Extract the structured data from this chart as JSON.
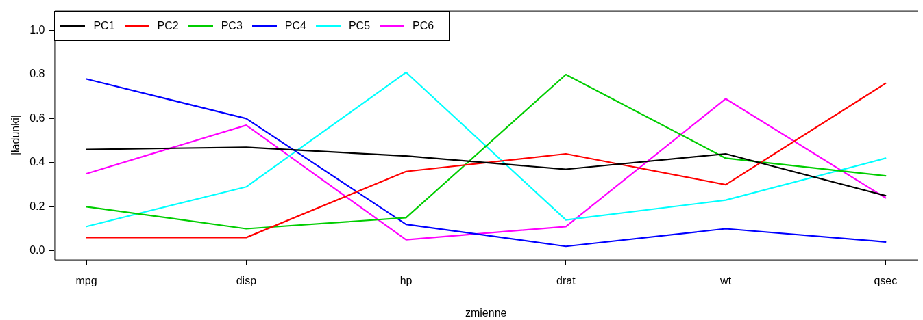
{
  "chart_data": {
    "type": "line",
    "xlabel": "zmienne",
    "ylabel": "|ładunki|",
    "categories": [
      "mpg",
      "disp",
      "hp",
      "drat",
      "wt",
      "qsec"
    ],
    "series": [
      {
        "name": "PC1",
        "color": "#000000",
        "values": [
          0.46,
          0.47,
          0.43,
          0.37,
          0.44,
          0.25
        ]
      },
      {
        "name": "PC2",
        "color": "#ff0000",
        "values": [
          0.06,
          0.06,
          0.36,
          0.44,
          0.3,
          0.76
        ]
      },
      {
        "name": "PC3",
        "color": "#00cd00",
        "values": [
          0.2,
          0.1,
          0.15,
          0.8,
          0.42,
          0.34
        ]
      },
      {
        "name": "PC4",
        "color": "#0000ff",
        "values": [
          0.78,
          0.6,
          0.12,
          0.02,
          0.1,
          0.04
        ]
      },
      {
        "name": "PC5",
        "color": "#00ffff",
        "values": [
          0.11,
          0.29,
          0.81,
          0.14,
          0.23,
          0.42
        ]
      },
      {
        "name": "PC6",
        "color": "#ff00ff",
        "values": [
          0.35,
          0.57,
          0.05,
          0.11,
          0.69,
          0.24
        ]
      }
    ],
    "ylim": [
      -0.04,
      1.09
    ],
    "yticks": [
      {
        "value": 0,
        "label": "0.0"
      },
      0.2,
      0.4,
      0.6,
      0.8,
      {
        "value": 1,
        "label": "1.0"
      }
    ],
    "legend": "top left",
    "grid": false,
    "marker": "none",
    "line_style": "solid"
  }
}
